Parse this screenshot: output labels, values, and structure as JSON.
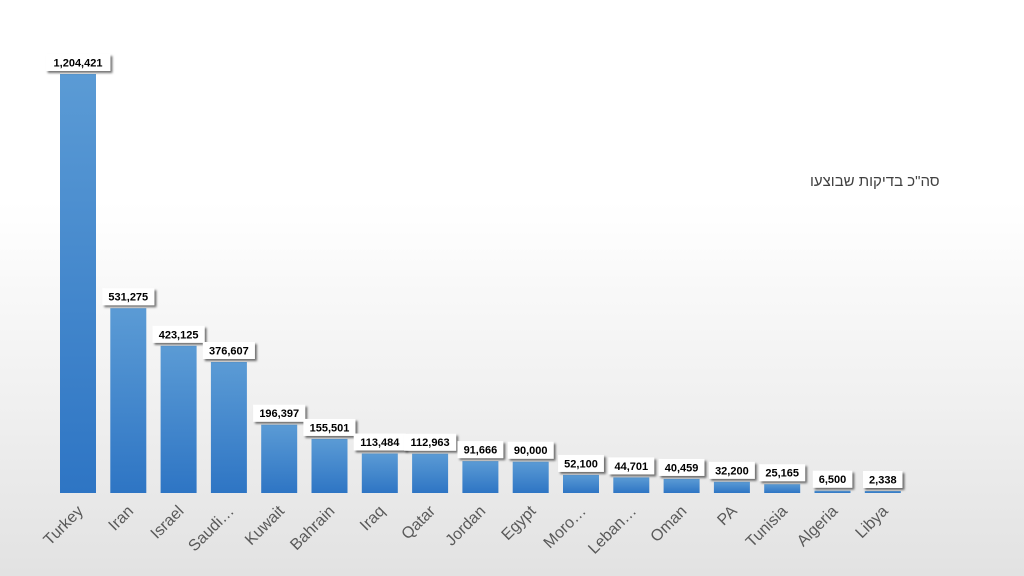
{
  "chart_data": {
    "type": "bar",
    "title": "סה\"כ בדיקות שבוצעו",
    "categories": [
      "Turkey",
      "Iran",
      "Israel",
      "Saudi…",
      "Kuwait",
      "Bahrain",
      "Iraq",
      "Qatar",
      "Jordan",
      "Egypt",
      "Moro…",
      "Leban…",
      "Oman",
      "PA",
      "Tunisia",
      "Algeria",
      "Libya"
    ],
    "values": [
      1204421,
      531275,
      423125,
      376607,
      196397,
      155501,
      113484,
      112963,
      91666,
      90000,
      52100,
      44701,
      40459,
      32200,
      25165,
      6500,
      2338
    ],
    "value_labels": [
      "1,204,421",
      "531,275",
      "423,125",
      "376,607",
      "196,397",
      "155,501",
      "113,484",
      "112,963",
      "91,666",
      "90,000",
      "52,100",
      "44,701",
      "40,459",
      "32,200",
      "25,165",
      "6,500",
      "2,338"
    ],
    "xlabel": "",
    "ylabel": "",
    "ylim": [
      0,
      1204421
    ],
    "grid": false,
    "legend": "none",
    "colors": {
      "bar_top": "#5b9bd5",
      "bar_bottom": "#2e75c4",
      "label_bg": "#ffffff",
      "label_text": "#000000"
    }
  }
}
